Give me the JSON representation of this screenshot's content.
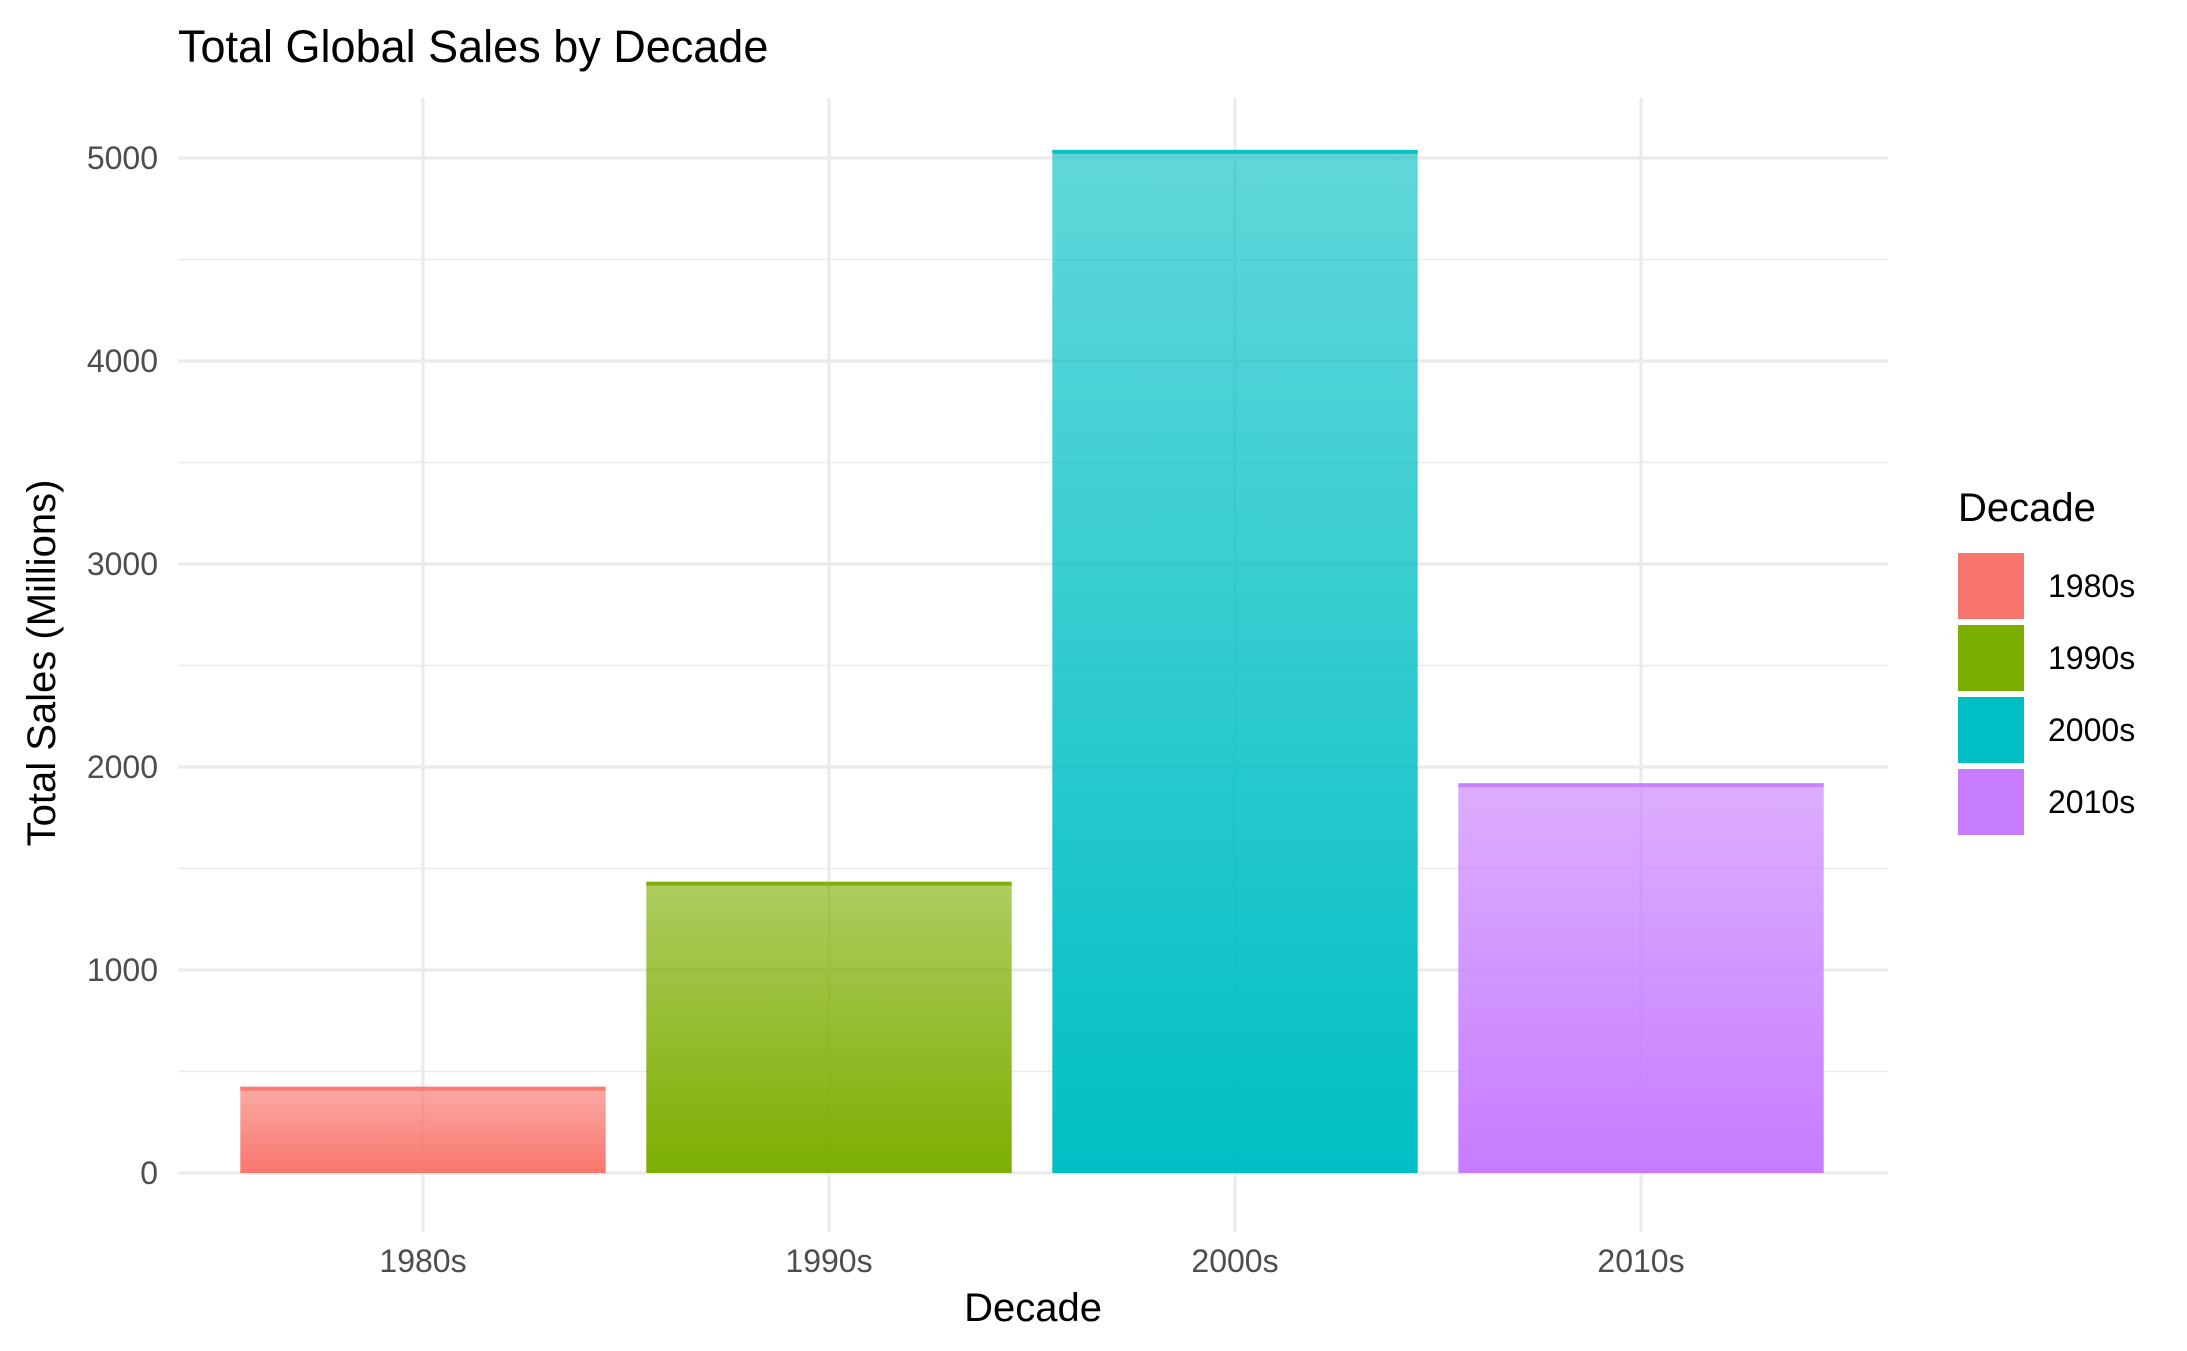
{
  "chart_data": {
    "type": "bar",
    "title": "Total Global Sales by Decade",
    "xlabel": "Decade",
    "ylabel": "Total Sales (Millions)",
    "categories": [
      "1980s",
      "1990s",
      "2000s",
      "2010s"
    ],
    "values": [
      425,
      1435,
      5040,
      1920
    ],
    "colors": [
      "#F8766D",
      "#7CAE00",
      "#00BFC4",
      "#C77CFF"
    ],
    "ylim": [
      0,
      5300
    ],
    "yticks": [
      0,
      1000,
      2000,
      3000,
      4000,
      5000
    ],
    "grid": true,
    "legend": {
      "title": "Decade",
      "position": "right",
      "entries": [
        "1980s",
        "1990s",
        "2000s",
        "2010s"
      ]
    }
  }
}
